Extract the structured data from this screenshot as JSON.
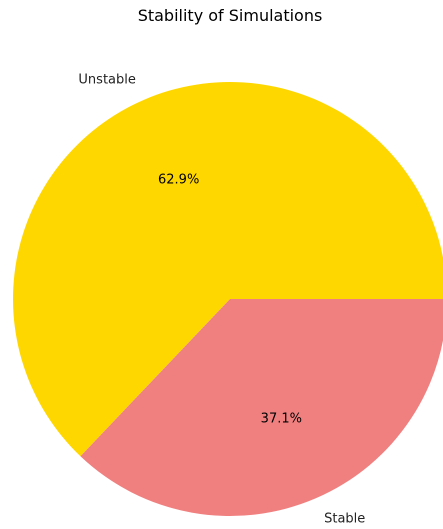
{
  "chart_data": {
    "type": "pie",
    "title": "Stability of Simulations",
    "categories": [
      "Unstable",
      "Stable"
    ],
    "values": [
      62.9,
      37.1
    ],
    "value_labels": [
      "62.9%",
      "37.1%"
    ],
    "colors": [
      "#FFD700",
      "#F08080"
    ],
    "start_angle_deg": 0,
    "direction": "counterclockwise"
  }
}
